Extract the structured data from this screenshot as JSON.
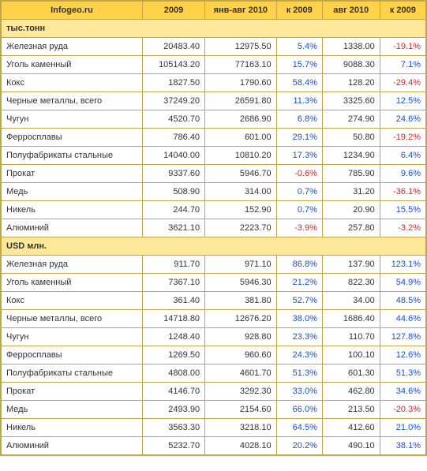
{
  "header": {
    "site": "Infogeo.ru",
    "cols": [
      "2009",
      "янв-авг 2010",
      "к 2009",
      "авг 2010",
      "к 2009"
    ]
  },
  "sections": [
    {
      "title": "тыс.тонн",
      "rows": [
        {
          "label": "Железная руда",
          "c2009": "20483.40",
          "janAug": "12975.50",
          "k1": "5.4%",
          "k1neg": false,
          "aug": "1338.00",
          "k2": "-19.1%",
          "k2neg": true
        },
        {
          "label": "Уголь каменный",
          "c2009": "105143.20",
          "janAug": "77163.10",
          "k1": "15.7%",
          "k1neg": false,
          "aug": "9088.30",
          "k2": "7.1%",
          "k2neg": false
        },
        {
          "label": "Кокс",
          "c2009": "1827.50",
          "janAug": "1790.60",
          "k1": "58.4%",
          "k1neg": false,
          "aug": "128.20",
          "k2": "-29.4%",
          "k2neg": true
        },
        {
          "label": "Черные металлы, всего",
          "c2009": "37249.20",
          "janAug": "26591.80",
          "k1": "11.3%",
          "k1neg": false,
          "aug": "3325.60",
          "k2": "12.5%",
          "k2neg": false
        },
        {
          "label": "Чугун",
          "c2009": "4520.70",
          "janAug": "2686.90",
          "k1": "6.8%",
          "k1neg": false,
          "aug": "274.90",
          "k2": "24.6%",
          "k2neg": false
        },
        {
          "label": "Ферросплавы",
          "c2009": "786.40",
          "janAug": "601.00",
          "k1": "29.1%",
          "k1neg": false,
          "aug": "50.80",
          "k2": "-19.2%",
          "k2neg": true
        },
        {
          "label": "Полуфабрикаты стальные",
          "c2009": "14040.00",
          "janAug": "10810.20",
          "k1": "17.3%",
          "k1neg": false,
          "aug": "1234.90",
          "k2": "6.4%",
          "k2neg": false
        },
        {
          "label": "Прокат",
          "c2009": "9337.60",
          "janAug": "5946.70",
          "k1": "-0.6%",
          "k1neg": true,
          "aug": "785.90",
          "k2": "9.6%",
          "k2neg": false
        },
        {
          "label": "Медь",
          "c2009": "508.90",
          "janAug": "314.00",
          "k1": "0.7%",
          "k1neg": false,
          "aug": "31.20",
          "k2": "-36.1%",
          "k2neg": true
        },
        {
          "label": "Никель",
          "c2009": "244.70",
          "janAug": "152.90",
          "k1": "0.7%",
          "k1neg": false,
          "aug": "20.90",
          "k2": "15.5%",
          "k2neg": false
        },
        {
          "label": "Алюминий",
          "c2009": "3621.10",
          "janAug": "2223.70",
          "k1": "-3.9%",
          "k1neg": true,
          "aug": "257.80",
          "k2": "-3.2%",
          "k2neg": true
        }
      ]
    },
    {
      "title": "USD млн.",
      "rows": [
        {
          "label": "Железная руда",
          "c2009": "911.70",
          "janAug": "971.10",
          "k1": "86.8%",
          "k1neg": false,
          "aug": "137.90",
          "k2": "123.1%",
          "k2neg": false
        },
        {
          "label": "Уголь каменный",
          "c2009": "7367.10",
          "janAug": "5946.30",
          "k1": "21.2%",
          "k1neg": false,
          "aug": "822.30",
          "k2": "54.9%",
          "k2neg": false
        },
        {
          "label": "Кокс",
          "c2009": "361.40",
          "janAug": "381.80",
          "k1": "52.7%",
          "k1neg": false,
          "aug": "34.00",
          "k2": "48.5%",
          "k2neg": false
        },
        {
          "label": "Черные металлы, всего",
          "c2009": "14718.80",
          "janAug": "12676.20",
          "k1": "38.0%",
          "k1neg": false,
          "aug": "1686.40",
          "k2": "44.6%",
          "k2neg": false
        },
        {
          "label": "Чугун",
          "c2009": "1248.40",
          "janAug": "928.80",
          "k1": "23.3%",
          "k1neg": false,
          "aug": "110.70",
          "k2": "127.8%",
          "k2neg": false
        },
        {
          "label": "Ферросплавы",
          "c2009": "1269.50",
          "janAug": "960.60",
          "k1": "24.3%",
          "k1neg": false,
          "aug": "100.10",
          "k2": "12.6%",
          "k2neg": false
        },
        {
          "label": "Полуфабрикаты стальные",
          "c2009": "4808.00",
          "janAug": "4601.70",
          "k1": "51.3%",
          "k1neg": false,
          "aug": "601.30",
          "k2": "51.3%",
          "k2neg": false
        },
        {
          "label": "Прокат",
          "c2009": "4146.70",
          "janAug": "3292.30",
          "k1": "33.0%",
          "k1neg": false,
          "aug": "462.80",
          "k2": "34.6%",
          "k2neg": false
        },
        {
          "label": "Медь",
          "c2009": "2493.90",
          "janAug": "2154.60",
          "k1": "66.0%",
          "k1neg": false,
          "aug": "213.50",
          "k2": "-20.3%",
          "k2neg": true
        },
        {
          "label": "Никель",
          "c2009": "3563.30",
          "janAug": "3218.10",
          "k1": "64.5%",
          "k1neg": false,
          "aug": "412.60",
          "k2": "21.0%",
          "k2neg": false
        },
        {
          "label": "Алюминий",
          "c2009": "5232.70",
          "janAug": "4028.10",
          "k1": "20.2%",
          "k1neg": false,
          "aug": "490.10",
          "k2": "38.1%",
          "k2neg": false
        }
      ]
    }
  ]
}
